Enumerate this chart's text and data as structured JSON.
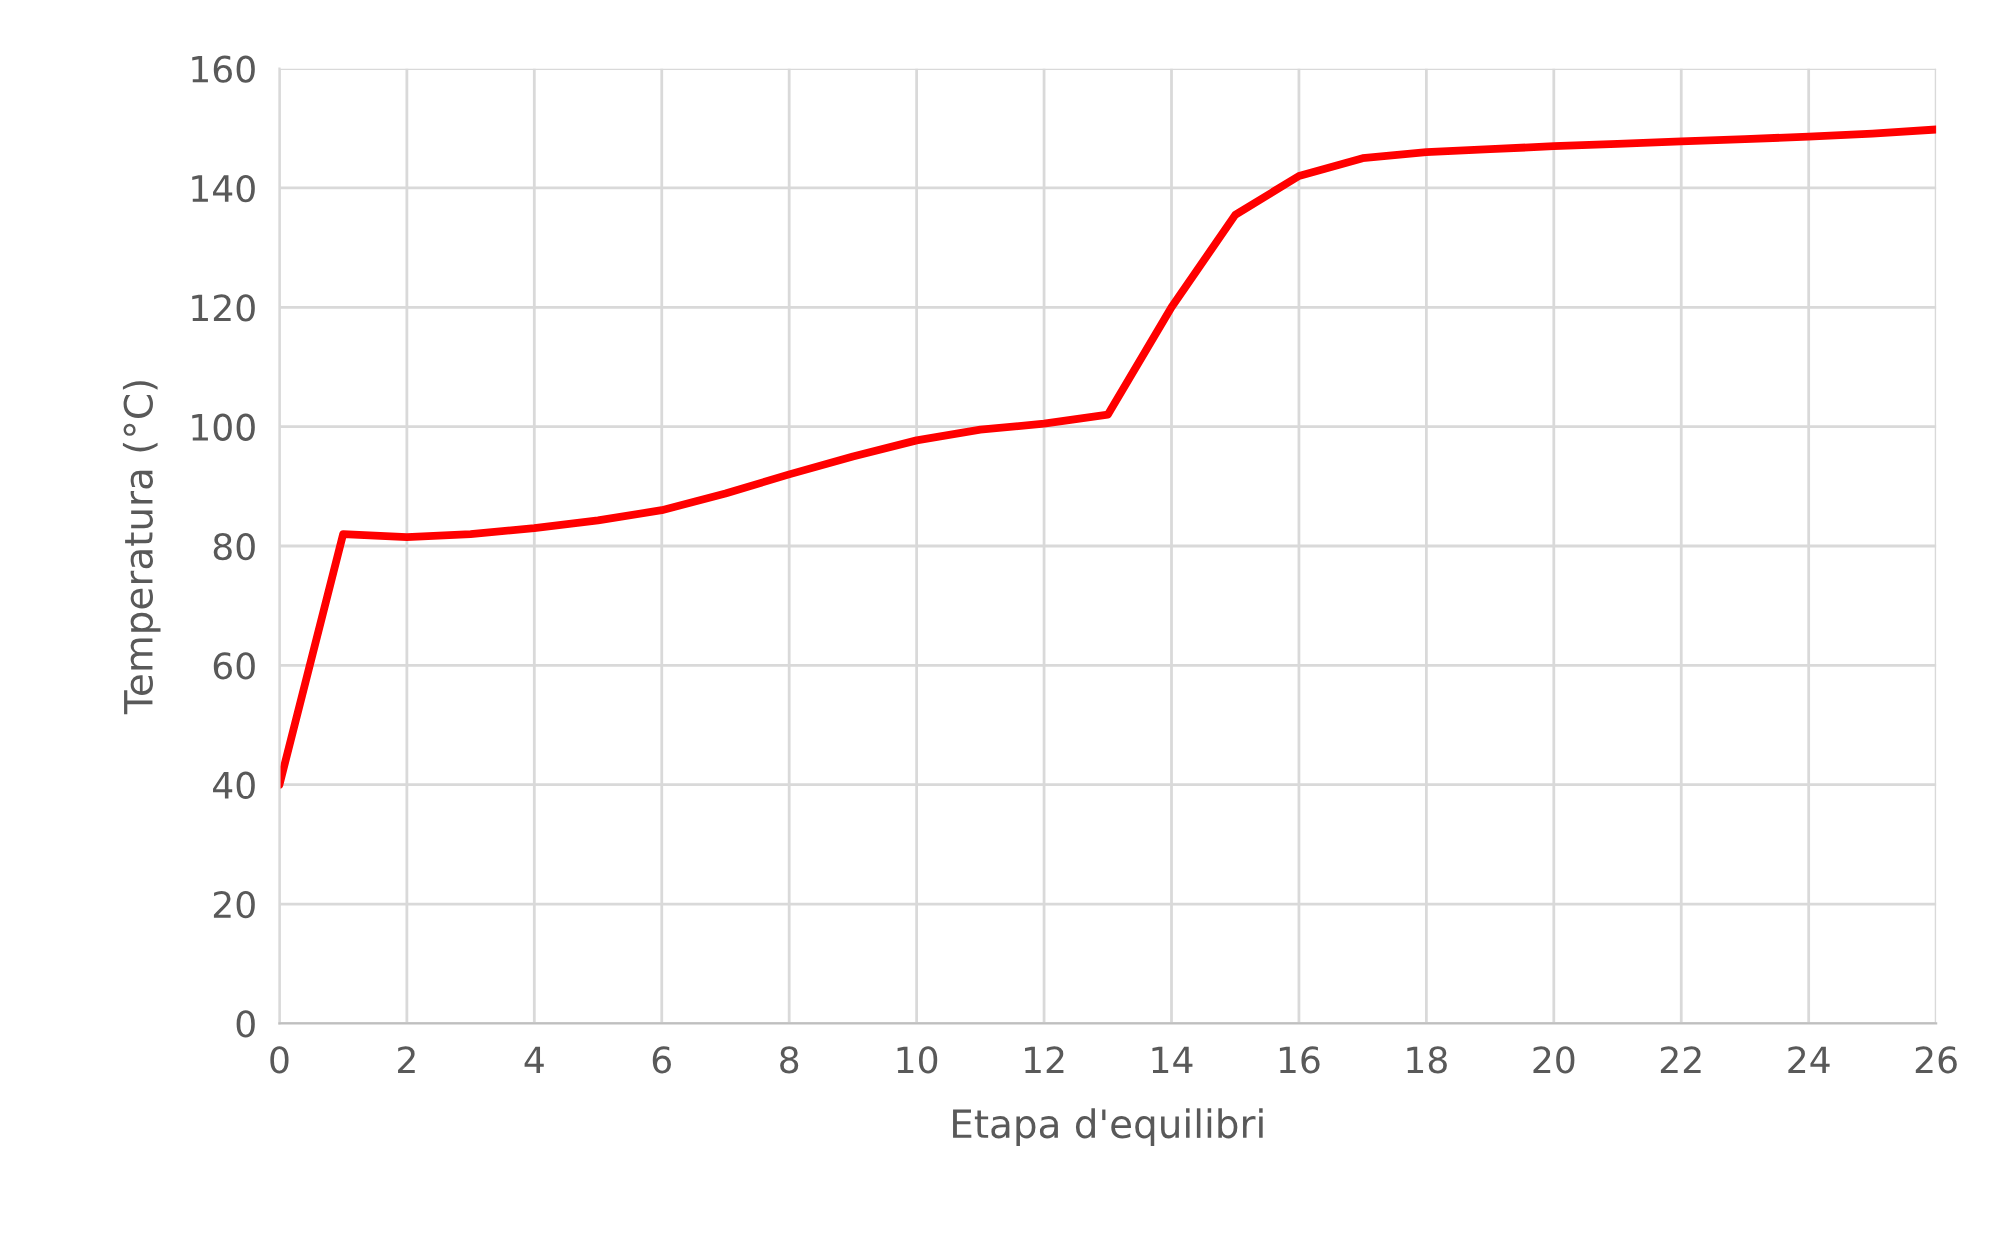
{
  "chart_data": {
    "type": "line",
    "xlabel": "Etapa d'equilibri",
    "ylabel": "Temperatura (°C)",
    "x": [
      0,
      1,
      2,
      3,
      4,
      5,
      6,
      7,
      8,
      9,
      10,
      11,
      12,
      13,
      14,
      15,
      16,
      17,
      18,
      19,
      20,
      21,
      22,
      23,
      24,
      25,
      26
    ],
    "series": [
      {
        "color": "#ff0000",
        "values": [
          40,
          82,
          81.5,
          82,
          83,
          84.3,
          86,
          88.8,
          92,
          95,
          97.7,
          99.5,
          100.5,
          102,
          120,
          135.5,
          142,
          145,
          146,
          146.5,
          147,
          147.4,
          147.8,
          148.2,
          148.6,
          149.1,
          149.8
        ]
      }
    ],
    "xlim": [
      0,
      26
    ],
    "xticks": [
      0,
      2,
      4,
      6,
      8,
      10,
      12,
      14,
      16,
      18,
      20,
      22,
      24,
      26
    ],
    "ylim": [
      0,
      160
    ],
    "yticks": [
      0,
      20,
      40,
      60,
      80,
      100,
      120,
      140,
      160
    ],
    "grid": true,
    "legend": false,
    "marker": "none",
    "line_style": "solid"
  }
}
